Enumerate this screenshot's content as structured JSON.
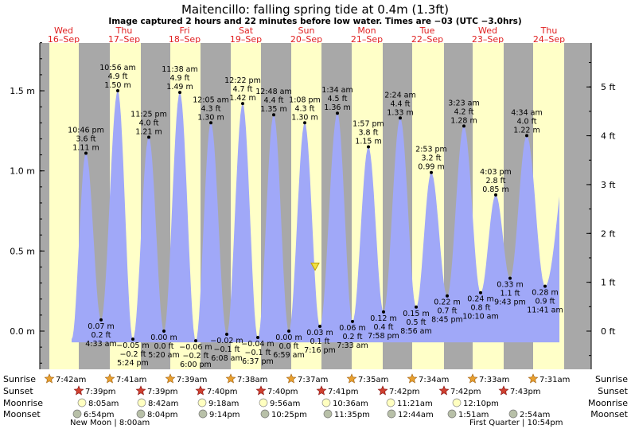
{
  "title": "Maitencillo: falling  spring tide at 0.4m (1.3ft)",
  "subtitle": "Image captured 2 hours and 22 minutes before low water. Times are −03 (UTC −3.0hrs)",
  "colors": {
    "day": "#ffffc8",
    "night": "#a8a8a8",
    "tide_fill": "#a0a8f8",
    "date_label": "#e02020",
    "marker": "#f0e040"
  },
  "chart_data": {
    "type": "area",
    "title": "Maitencillo: falling  spring tide at 0.4m (1.3ft)",
    "xlabel": "",
    "ylabel": "",
    "ylim": [
      -0.25,
      1.85
    ],
    "yticks_left": [
      "1.5 m",
      "1.0 m",
      "0.5 m",
      "0.0 m"
    ],
    "yticks_left_values": [
      1.5,
      1.0,
      0.5,
      0.0
    ],
    "yticks_right": [
      "5 ft",
      "4 ft",
      "3 ft",
      "2 ft",
      "1 ft",
      "0 ft"
    ],
    "yticks_right_values_m": [
      1.524,
      1.2192,
      0.9144,
      0.6096,
      0.3048,
      0.0
    ],
    "days": [
      {
        "dow": "Wed",
        "date": "16–Sep"
      },
      {
        "dow": "Thu",
        "date": "17–Sep"
      },
      {
        "dow": "Fri",
        "date": "18–Sep"
      },
      {
        "dow": "Sat",
        "date": "19–Sep"
      },
      {
        "dow": "Sun",
        "date": "20–Sep"
      },
      {
        "dow": "Mon",
        "date": "21–Sep"
      },
      {
        "dow": "Tue",
        "date": "22–Sep"
      },
      {
        "dow": "Wed",
        "date": "23–Sep"
      },
      {
        "dow": "Thu",
        "date": "24–Sep"
      }
    ],
    "tide_events": [
      {
        "type": "high",
        "time": "10:46 pm",
        "ft": "3.6 ft",
        "m": "1.11 m",
        "value": 1.11
      },
      {
        "type": "low",
        "time": "4:33 am",
        "ft": "0.2 ft",
        "m": "0.07 m",
        "value": 0.07
      },
      {
        "type": "high",
        "time": "10:56 am",
        "ft": "4.9 ft",
        "m": "1.50 m",
        "value": 1.5
      },
      {
        "type": "low",
        "time": "5:24 pm",
        "ft": "−0.2 ft",
        "m": "−0.05 m",
        "value": -0.05
      },
      {
        "type": "high",
        "time": "11:25 pm",
        "ft": "4.0 ft",
        "m": "1.21 m",
        "value": 1.21
      },
      {
        "type": "low",
        "time": "5:20 am",
        "ft": "0.0 ft",
        "m": "0.00 m",
        "value": 0.0
      },
      {
        "type": "high",
        "time": "11:38 am",
        "ft": "4.9 ft",
        "m": "1.49 m",
        "value": 1.49
      },
      {
        "type": "low",
        "time": "6:00 pm",
        "ft": "−0.2 ft",
        "m": "−0.06 m",
        "value": -0.06
      },
      {
        "type": "high",
        "time": "12:05 am",
        "ft": "4.3 ft",
        "m": "1.30 m",
        "value": 1.3
      },
      {
        "type": "low",
        "time": "6:08 am",
        "ft": "−0.1 ft",
        "m": "−0.02 m",
        "value": -0.02
      },
      {
        "type": "high",
        "time": "12:22 pm",
        "ft": "4.7 ft",
        "m": "1.42 m",
        "value": 1.42
      },
      {
        "type": "low",
        "time": "6:37 pm",
        "ft": "−0.1 ft",
        "m": "−0.04 m",
        "value": -0.04
      },
      {
        "type": "high",
        "time": "12:48 am",
        "ft": "4.4 ft",
        "m": "1.35 m",
        "value": 1.35
      },
      {
        "type": "low",
        "time": "6:59 am",
        "ft": "0.0 ft",
        "m": "0.00 m",
        "value": 0.0
      },
      {
        "type": "high",
        "time": "1:08 pm",
        "ft": "4.3 ft",
        "m": "1.30 m",
        "value": 1.3
      },
      {
        "type": "low",
        "time": "7:16 pm",
        "ft": "0.1 ft",
        "m": "0.03 m",
        "value": 0.03
      },
      {
        "type": "high",
        "time": "1:34 am",
        "ft": "4.5 ft",
        "m": "1.36 m",
        "value": 1.36
      },
      {
        "type": "low",
        "time": "7:33 am",
        "ft": "0.2 ft",
        "m": "0.06 m",
        "value": 0.06
      },
      {
        "type": "high",
        "time": "1:57 pm",
        "ft": "3.8 ft",
        "m": "1.15 m",
        "value": 1.15
      },
      {
        "type": "low",
        "time": "7:58 pm",
        "ft": "0.4 ft",
        "m": "0.12 m",
        "value": 0.12
      },
      {
        "type": "high",
        "time": "2:24 am",
        "ft": "4.4 ft",
        "m": "1.33 m",
        "value": 1.33
      },
      {
        "type": "low",
        "time": "8:56 am",
        "ft": "0.5 ft",
        "m": "0.15 m",
        "value": 0.15
      },
      {
        "type": "high",
        "time": "2:53 pm",
        "ft": "3.2 ft",
        "m": "0.99 m",
        "value": 0.99
      },
      {
        "type": "low",
        "time": "8:45 pm",
        "ft": "0.7 ft",
        "m": "0.22 m",
        "value": 0.22
      },
      {
        "type": "high",
        "time": "3:23 am",
        "ft": "4.2 ft",
        "m": "1.28 m",
        "value": 1.28
      },
      {
        "type": "low",
        "time": "10:10 am",
        "ft": "0.8 ft",
        "m": "0.24 m",
        "value": 0.24
      },
      {
        "type": "high",
        "time": "4:03 pm",
        "ft": "2.8 ft",
        "m": "0.85 m",
        "value": 0.85
      },
      {
        "type": "low",
        "time": "9:43 pm",
        "ft": "1.1 ft",
        "m": "0.33 m",
        "value": 0.33
      },
      {
        "type": "high",
        "time": "4:34 am",
        "ft": "4.0 ft",
        "m": "1.22 m",
        "value": 1.22
      },
      {
        "type": "low",
        "time": "11:41 am",
        "ft": "0.9 ft",
        "m": "0.28 m",
        "value": 0.28
      }
    ],
    "current_level_m": 0.4,
    "grid": false
  },
  "astro": {
    "labels": {
      "sunrise": "Sunrise",
      "sunset": "Sunset",
      "moonrise": "Moonrise",
      "moonset": "Moonset"
    },
    "sunrise": [
      "7:42am",
      "7:41am",
      "7:39am",
      "7:38am",
      "7:37am",
      "7:35am",
      "7:34am",
      "7:33am",
      "7:31am"
    ],
    "sunset": [
      "7:39pm",
      "7:39pm",
      "7:40pm",
      "7:40pm",
      "7:41pm",
      "7:42pm",
      "7:42pm",
      "7:43pm"
    ],
    "moonrise": [
      "8:05am",
      "8:42am",
      "9:18am",
      "9:56am",
      "10:36am",
      "11:21am",
      "12:10pm"
    ],
    "moonset": [
      "6:54pm",
      "8:04pm",
      "9:14pm",
      "10:25pm",
      "11:35pm",
      "12:44am",
      "1:51am",
      "2:54am"
    ],
    "phases": [
      "New Moon | 8:00am",
      "First Quarter | 10:54pm"
    ]
  }
}
